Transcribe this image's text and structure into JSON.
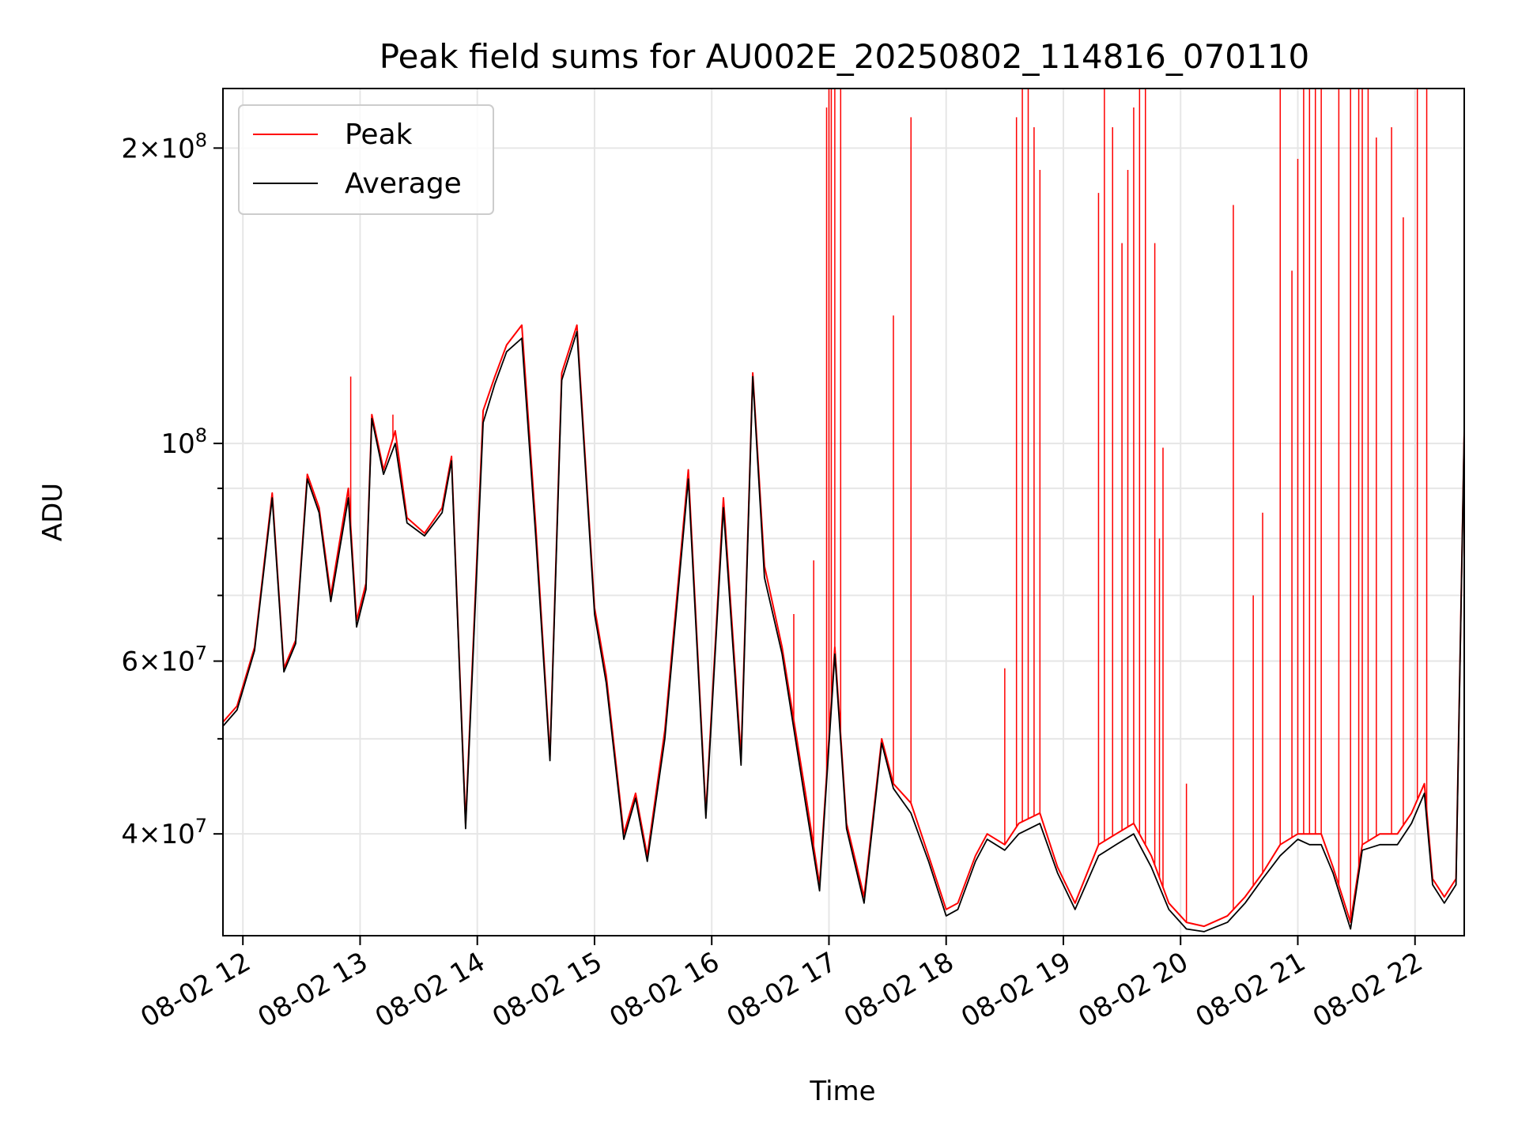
{
  "chart_data": {
    "type": "line",
    "title": "Peak field sums for AU002E_20250802_114816_070110",
    "xlabel": "Time",
    "ylabel": "ADU",
    "x_ticks": [
      "08-02 12",
      "08-02 13",
      "08-02 14",
      "08-02 15",
      "08-02 16",
      "08-02 17",
      "08-02 18",
      "08-02 19",
      "08-02 20",
      "08-02 21",
      "08-02 22"
    ],
    "x_tick_hours": [
      12,
      13,
      14,
      15,
      16,
      17,
      18,
      19,
      20,
      21,
      22
    ],
    "xlim_hours": [
      11.83,
      22.42
    ],
    "y_scale": "log",
    "ylim": [
      31500000,
      230000000
    ],
    "y_ticks": [
      {
        "value": 200000000,
        "mant": "2",
        "exp": "8"
      },
      {
        "value": 100000000,
        "mant": "",
        "exp": "8"
      },
      {
        "value": 60000000,
        "mant": "6",
        "exp": "7"
      },
      {
        "value": 40000000,
        "mant": "4",
        "exp": "7"
      }
    ],
    "y_minor_ticks": [
      30000000,
      50000000,
      70000000,
      80000000,
      90000000
    ],
    "grid": true,
    "legend_position": "top-left",
    "series": [
      {
        "name": "Peak",
        "color": "#ff0000",
        "x": [
          11.83,
          11.95,
          12.1,
          12.25,
          12.35,
          12.45,
          12.55,
          12.65,
          12.75,
          12.9,
          12.97,
          13.05,
          13.1,
          13.2,
          13.3,
          13.4,
          13.55,
          13.7,
          13.78,
          13.9,
          14.05,
          14.15,
          14.25,
          14.38,
          14.5,
          14.62,
          14.72,
          14.85,
          15.0,
          15.1,
          15.25,
          15.35,
          15.45,
          15.6,
          15.8,
          15.95,
          16.1,
          16.25,
          16.35,
          16.45,
          16.6,
          16.8,
          16.92,
          17.05,
          17.15,
          17.3,
          17.45,
          17.55,
          17.7,
          17.85,
          18.0,
          18.1,
          18.25,
          18.35,
          18.5,
          18.62,
          18.8,
          18.95,
          19.1,
          19.3,
          19.45,
          19.6,
          19.75,
          19.9,
          20.05,
          20.2,
          20.4,
          20.55,
          20.7,
          20.85,
          21.0,
          21.1,
          21.2,
          21.3,
          21.45,
          21.55,
          21.7,
          21.85,
          21.97,
          22.08,
          22.15,
          22.25,
          22.35,
          22.42
        ],
        "y": [
          52000000,
          54000000,
          62000000,
          89000000,
          59000000,
          63000000,
          93000000,
          86000000,
          70000000,
          90000000,
          66000000,
          72000000,
          107000000,
          94000000,
          103000000,
          84000000,
          81000000,
          86000000,
          97000000,
          41000000,
          108000000,
          117000000,
          126000000,
          132000000,
          82000000,
          48000000,
          118000000,
          132000000,
          68000000,
          58000000,
          40000000,
          44000000,
          38000000,
          51000000,
          94000000,
          42000000,
          88000000,
          48000000,
          118000000,
          75000000,
          62000000,
          44000000,
          35500000,
          62000000,
          41000000,
          34500000,
          50000000,
          45000000,
          43000000,
          38000000,
          33500000,
          34000000,
          38000000,
          40000000,
          39000000,
          41000000,
          42000000,
          37000000,
          34000000,
          39000000,
          40000000,
          41000000,
          38000000,
          34000000,
          32500000,
          32200000,
          33000000,
          34500000,
          36500000,
          39000000,
          40000000,
          40000000,
          40000000,
          37000000,
          32500000,
          39000000,
          40000000,
          40000000,
          42000000,
          45000000,
          36000000,
          34500000,
          36000000,
          103000000
        ]
      },
      {
        "name": "Average",
        "color": "#000000",
        "x": [
          11.83,
          11.95,
          12.1,
          12.25,
          12.35,
          12.45,
          12.55,
          12.65,
          12.75,
          12.9,
          12.97,
          13.05,
          13.1,
          13.2,
          13.3,
          13.4,
          13.55,
          13.7,
          13.78,
          13.9,
          14.05,
          14.15,
          14.25,
          14.38,
          14.5,
          14.62,
          14.72,
          14.85,
          15.0,
          15.1,
          15.25,
          15.35,
          15.45,
          15.6,
          15.8,
          15.95,
          16.1,
          16.25,
          16.35,
          16.45,
          16.6,
          16.8,
          16.92,
          17.05,
          17.15,
          17.3,
          17.45,
          17.55,
          17.7,
          17.85,
          18.0,
          18.1,
          18.25,
          18.35,
          18.5,
          18.62,
          18.8,
          18.95,
          19.1,
          19.3,
          19.45,
          19.6,
          19.75,
          19.9,
          20.05,
          20.2,
          20.4,
          20.55,
          20.7,
          20.85,
          21.0,
          21.1,
          21.2,
          21.3,
          21.45,
          21.55,
          21.7,
          21.85,
          21.97,
          22.08,
          22.15,
          22.25,
          22.35,
          22.42
        ],
        "y": [
          51500000,
          53500000,
          61500000,
          88000000,
          58500000,
          62500000,
          92000000,
          85000000,
          69000000,
          88000000,
          65000000,
          71000000,
          106000000,
          93000000,
          100000000,
          83000000,
          80500000,
          85000000,
          96000000,
          40500000,
          105000000,
          115000000,
          124000000,
          128000000,
          80000000,
          47500000,
          116000000,
          130000000,
          67000000,
          57000000,
          39500000,
          43500000,
          37500000,
          50000000,
          92000000,
          41500000,
          86000000,
          47000000,
          117000000,
          73000000,
          61000000,
          43000000,
          35000000,
          61000000,
          40500000,
          34000000,
          49500000,
          44500000,
          42000000,
          37500000,
          33000000,
          33500000,
          37500000,
          39500000,
          38500000,
          40000000,
          41000000,
          36500000,
          33500000,
          38000000,
          39000000,
          40000000,
          37000000,
          33500000,
          32000000,
          31800000,
          32500000,
          34000000,
          36000000,
          38000000,
          39500000,
          39000000,
          39000000,
          36500000,
          32000000,
          38500000,
          39000000,
          39000000,
          41000000,
          44000000,
          35500000,
          34000000,
          35500000,
          103000000
        ]
      }
    ],
    "spikes": {
      "series": "Peak",
      "x": [
        12.92,
        13.28,
        16.7,
        16.87,
        16.98,
        17.0,
        17.02,
        17.05,
        17.1,
        17.55,
        17.7,
        18.5,
        18.6,
        18.65,
        18.7,
        18.75,
        18.8,
        19.3,
        19.35,
        19.42,
        19.5,
        19.55,
        19.6,
        19.65,
        19.7,
        19.78,
        19.82,
        19.85,
        20.05,
        20.45,
        20.62,
        20.7,
        20.85,
        20.95,
        21.0,
        21.05,
        21.1,
        21.15,
        21.2,
        21.35,
        21.45,
        21.52,
        21.55,
        21.6,
        21.67,
        21.8,
        21.9,
        22.02,
        22.1
      ],
      "y": [
        117000000,
        107000000,
        67000000,
        76000000,
        220000000,
        230000000,
        230000000,
        230000000,
        230000000,
        135000000,
        215000000,
        59000000,
        215000000,
        230000000,
        230000000,
        210000000,
        190000000,
        180000000,
        230000000,
        210000000,
        160000000,
        190000000,
        220000000,
        230000000,
        230000000,
        160000000,
        80000000,
        99000000,
        45000000,
        175000000,
        70000000,
        85000000,
        230000000,
        150000000,
        195000000,
        230000000,
        230000000,
        230000000,
        230000000,
        230000000,
        230000000,
        230000000,
        230000000,
        230000000,
        205000000,
        210000000,
        170000000,
        230000000,
        230000000
      ]
    }
  }
}
